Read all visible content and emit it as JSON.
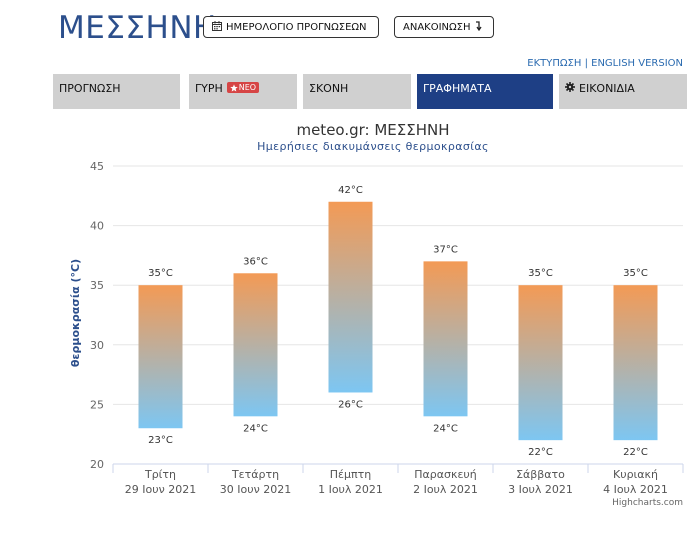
{
  "header": {
    "city": "ΜΕΣΣΗΝΗ",
    "calendar_button": "ΗΜΕΡΟΛΟΓΙΟ ΠΡΟΓΝΩΣΕΩΝ",
    "calendar_icon": "calendar-icon",
    "reload_button": "ΑΝΑΚΟΙΝΩΣΗ",
    "reload_icon": "arrow-down-icon",
    "print_link": "ΕΚΤΥΠΩΣΗ",
    "separator": "|",
    "english_link": "ENGLISH VERSION"
  },
  "tabs": [
    {
      "label": "ΠΡΟΓΝΩΣΗ"
    },
    {
      "label": "ΓΥΡΗ",
      "badge": "ΝΕΟ",
      "badge_icon": "star-icon"
    },
    {
      "label": "ΣΚΟΝΗ"
    },
    {
      "label": "ΓΡΑΦΗΜΑΤΑ",
      "active": true
    },
    {
      "label": "ΕΙΚΟΝΙΔΙΑ",
      "icon": "gear-icon"
    }
  ],
  "colors": {
    "brand": "#2c4f8c",
    "active_tab": "#1e3f85",
    "bar_top": "#f39a55",
    "bar_bottom": "#7dc6f2",
    "badge": "#d64545"
  },
  "chart_data": {
    "type": "bar",
    "subtype": "columnrange",
    "title": "meteo.gr: ΜΕΣΣΗΝΗ",
    "subtitle": "Ημερήσιες διακυμάνσεις θερμοκρασίας",
    "ylabel": "θερμοκρασία (°C)",
    "xlabel": "",
    "ylim": [
      20,
      45
    ],
    "yticks": [
      20,
      25,
      30,
      35,
      40,
      45
    ],
    "grid": true,
    "categories": [
      [
        "Τρίτη",
        "29 Ιουν 2021"
      ],
      [
        "Τετάρτη",
        "30 Ιουν 2021"
      ],
      [
        "Πέμπτη",
        "1 Ιουλ 2021"
      ],
      [
        "Παρασκευή",
        "2 Ιουλ 2021"
      ],
      [
        "Σάββατο",
        "3 Ιουλ 2021"
      ],
      [
        "Κυριακή",
        "4 Ιουλ 2021"
      ]
    ],
    "series": [
      {
        "low": [
          23,
          24,
          26,
          24,
          22,
          22
        ],
        "high": [
          35,
          36,
          42,
          37,
          35,
          35
        ]
      }
    ],
    "unit": "°C",
    "credits": "Highcharts.com"
  }
}
